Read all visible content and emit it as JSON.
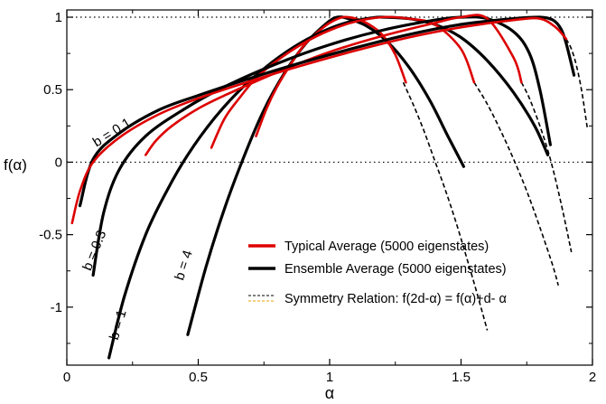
{
  "chart_data": {
    "type": "line",
    "title": "",
    "xlabel": "α",
    "ylabel": "f(α)",
    "xlim": [
      0,
      2
    ],
    "ylim": [
      -1.4,
      1.05
    ],
    "x_ticks": [
      0,
      0.5,
      1,
      1.5,
      2
    ],
    "x_tick_labels": [
      "0",
      "0.5",
      "1",
      "1.5",
      "2"
    ],
    "y_ticks": [
      -1,
      -0.5,
      0,
      0.5,
      1
    ],
    "y_tick_labels": [
      "-1",
      "-0.5",
      "0",
      "0.5",
      "1"
    ],
    "reference_lines": [
      0,
      1
    ],
    "legend": {
      "placement": "lower-right",
      "entries": [
        {
          "label": "Typical Average (5000 eigenstates)",
          "color": "#dd0000",
          "style": "solid-thick"
        },
        {
          "label": "Ensemble Average (5000 eigenstates)",
          "color": "#000000",
          "style": "solid-thick"
        },
        {
          "label": "Symmetry Relation: f(2d-α) = f(α)+d- α",
          "color": "#000000",
          "color2": "#e8a000",
          "style": "dashed"
        }
      ]
    },
    "annotations": [
      {
        "text": "b = 0.1",
        "x": 0.18,
        "y": 0.18,
        "rotation": -32
      },
      {
        "text": "b = 0.3",
        "x": 0.12,
        "y": -0.62,
        "rotation": -68
      },
      {
        "text": "b = 1",
        "x": 0.21,
        "y": -1.13,
        "rotation": -74
      },
      {
        "text": "b = 4",
        "x": 0.46,
        "y": -0.72,
        "rotation": -72
      }
    ],
    "series": [
      {
        "b": 4,
        "alpha_min": 0.46,
        "alpha0": 1.03,
        "f_min": -1.19,
        "alpha_max": 1.51,
        "ensemble_x": [
          0.46,
          0.53,
          0.6,
          0.67,
          0.75,
          0.83,
          0.91,
          0.99,
          1.03,
          1.07,
          1.14,
          1.22,
          1.3,
          1.38,
          1.45,
          1.51
        ],
        "ensemble_y": [
          -1.19,
          -0.72,
          -0.32,
          0.02,
          0.36,
          0.62,
          0.82,
          0.96,
          1.0,
          0.99,
          0.94,
          0.83,
          0.66,
          0.43,
          0.18,
          -0.03
        ],
        "typical_x": [
          0.72,
          0.76,
          0.8,
          0.85,
          0.9,
          0.95,
          1.0,
          1.05,
          1.1,
          1.15,
          1.2,
          1.25,
          1.29
        ],
        "typical_y": [
          0.18,
          0.37,
          0.52,
          0.67,
          0.8,
          0.89,
          0.96,
          1.0,
          0.99,
          0.95,
          0.88,
          0.74,
          0.55
        ],
        "symmetry_x": [
          1.28,
          1.32,
          1.36,
          1.4,
          1.44,
          1.48,
          1.52,
          1.56,
          1.6
        ],
        "symmetry_y": [
          0.55,
          0.39,
          0.21,
          0.01,
          -0.19,
          -0.41,
          -0.65,
          -0.9,
          -1.16
        ]
      },
      {
        "b": 1,
        "alpha_min": 0.16,
        "alpha0": 1.2,
        "f_min": -1.35,
        "alpha_max": 1.83,
        "ensemble_x": [
          0.16,
          0.22,
          0.3,
          0.38,
          0.46,
          0.56,
          0.66,
          0.76,
          0.86,
          0.96,
          1.06,
          1.16,
          1.2,
          1.3,
          1.4,
          1.5,
          1.6,
          1.7,
          1.78,
          1.83
        ],
        "ensemble_y": [
          -1.35,
          -0.92,
          -0.5,
          -0.2,
          0.05,
          0.3,
          0.5,
          0.66,
          0.79,
          0.89,
          0.96,
          0.995,
          1.0,
          0.99,
          0.95,
          0.86,
          0.7,
          0.48,
          0.25,
          0.05
        ],
        "typical_x": [
          0.55,
          0.6,
          0.66,
          0.72,
          0.8,
          0.9,
          1.0,
          1.1,
          1.2,
          1.3,
          1.4,
          1.5,
          1.55
        ],
        "typical_y": [
          0.1,
          0.3,
          0.45,
          0.58,
          0.7,
          0.82,
          0.91,
          0.97,
          1.0,
          0.99,
          0.95,
          0.78,
          0.55
        ],
        "symmetry_x": [
          1.55,
          1.6,
          1.65,
          1.7,
          1.75,
          1.8,
          1.85,
          1.87
        ],
        "symmetry_y": [
          0.55,
          0.4,
          0.22,
          0.02,
          -0.2,
          -0.45,
          -0.72,
          -0.85
        ]
      },
      {
        "b": 0.3,
        "alpha_min": 0.05,
        "alpha0": 1.5,
        "f_min": -0.97,
        "alpha_max": 1.92,
        "ensemble_x": [
          0.1,
          0.14,
          0.2,
          0.3,
          0.45,
          0.6,
          0.8,
          1.0,
          1.2,
          1.4,
          1.5,
          1.6,
          1.7,
          1.76,
          1.8,
          1.84
        ],
        "ensemble_y": [
          -0.78,
          -0.35,
          -0.05,
          0.18,
          0.37,
          0.52,
          0.68,
          0.81,
          0.91,
          0.98,
          1.0,
          0.99,
          0.9,
          0.75,
          0.5,
          0.12
        ],
        "typical_x": [
          0.3,
          0.34,
          0.4,
          0.5,
          0.6,
          0.8,
          1.0,
          1.2,
          1.4,
          1.5,
          1.6,
          1.7,
          1.73
        ],
        "typical_y": [
          0.05,
          0.15,
          0.25,
          0.37,
          0.46,
          0.62,
          0.76,
          0.87,
          0.96,
          1.0,
          0.99,
          0.72,
          0.55
        ],
        "symmetry_x": [
          1.73,
          1.76,
          1.8,
          1.84,
          1.88,
          1.92
        ],
        "symmetry_y": [
          0.55,
          0.44,
          0.25,
          0.02,
          -0.28,
          -0.62
        ]
      },
      {
        "b": 0.1,
        "alpha_min": 0.02,
        "alpha0": 1.8,
        "f_min": -0.6,
        "alpha_max": 1.95,
        "ensemble_x": [
          0.05,
          0.1,
          0.2,
          0.35,
          0.5,
          0.7,
          0.9,
          1.1,
          1.3,
          1.5,
          1.7,
          1.8,
          1.85,
          1.88,
          1.9,
          1.93
        ],
        "ensemble_y": [
          -0.3,
          0.02,
          0.2,
          0.36,
          0.46,
          0.58,
          0.69,
          0.79,
          0.88,
          0.95,
          0.99,
          1.0,
          0.98,
          0.92,
          0.82,
          0.6
        ],
        "typical_x": [
          0.02,
          0.05,
          0.1,
          0.2,
          0.35,
          0.5,
          0.7,
          0.9,
          1.1,
          1.3,
          1.5,
          1.7,
          1.8,
          1.86,
          1.9
        ],
        "typical_y": [
          -0.42,
          -0.2,
          0.0,
          0.17,
          0.33,
          0.44,
          0.56,
          0.67,
          0.77,
          0.86,
          0.93,
          0.98,
          0.99,
          0.93,
          0.85
        ],
        "symmetry_x": [
          1.9,
          1.92,
          1.94,
          1.96,
          1.98
        ],
        "symmetry_y": [
          0.85,
          0.78,
          0.66,
          0.48,
          0.24
        ]
      }
    ]
  }
}
